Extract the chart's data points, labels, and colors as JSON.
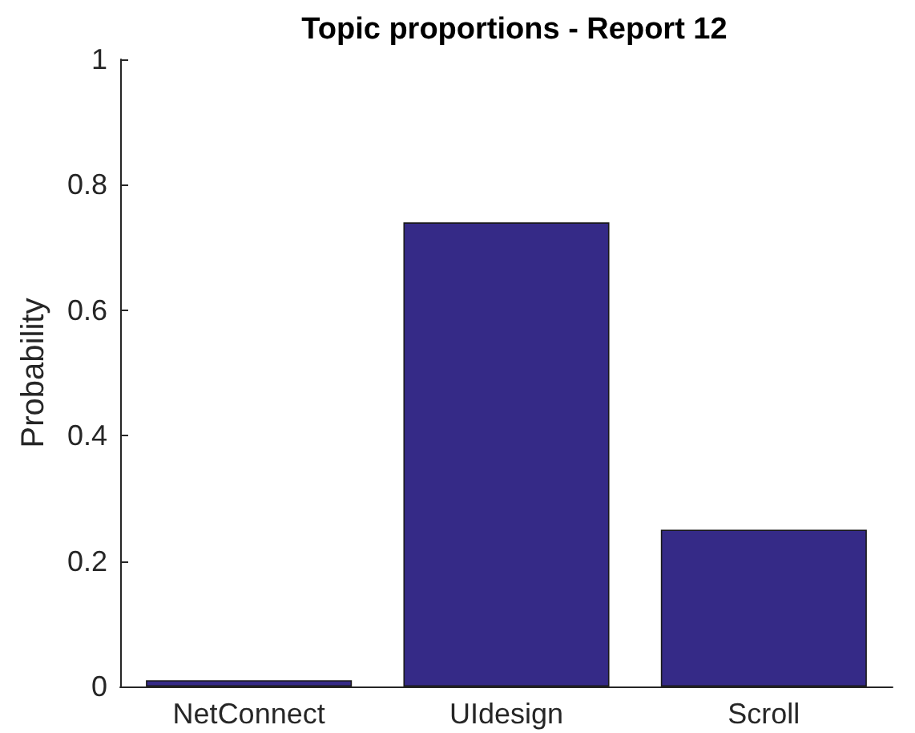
{
  "chart_data": {
    "type": "bar",
    "title": "Topic proportions - Report 12",
    "ylabel": "Probability",
    "categories": [
      "NetConnect",
      "UIdesign",
      "Scroll"
    ],
    "values": [
      0.01,
      0.74,
      0.25
    ],
    "color": "#352a87",
    "ylim": [
      0,
      1
    ],
    "yticks": [
      0,
      0.2,
      0.4,
      0.6,
      0.8,
      1
    ],
    "grid": false
  }
}
